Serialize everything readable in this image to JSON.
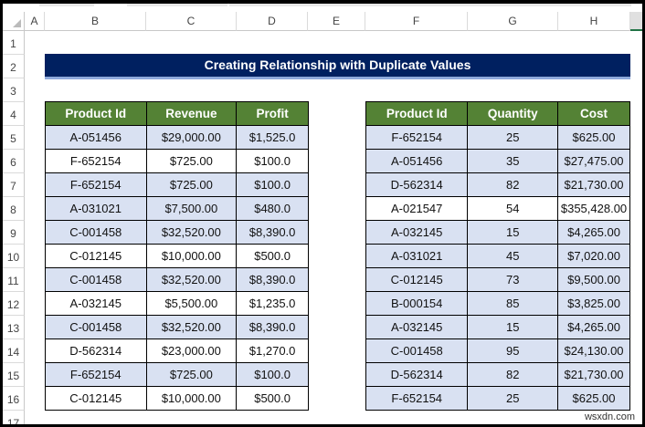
{
  "columns": [
    "A",
    "B",
    "C",
    "D",
    "E",
    "F",
    "G",
    "H"
  ],
  "rows": [
    "1",
    "2",
    "3",
    "4",
    "5",
    "6",
    "7",
    "8",
    "9",
    "10",
    "11",
    "12",
    "13",
    "14",
    "15",
    "16",
    "17"
  ],
  "title": "Creating Relationship with Duplicate Values",
  "colors": {
    "title_bg": "#002060",
    "header_bg": "#548235",
    "highlight": "#d9e1f2"
  },
  "table1": {
    "headers": [
      "Product Id",
      "Revenue",
      "Profit"
    ],
    "rows": [
      {
        "cells": [
          "A-051456",
          "$29,000.00",
          "$1,525.0"
        ],
        "highlighted": true
      },
      {
        "cells": [
          "F-652154",
          "$725.00",
          "$100.0"
        ],
        "highlighted": false
      },
      {
        "cells": [
          "F-652154",
          "$725.00",
          "$100.0"
        ],
        "highlighted": true
      },
      {
        "cells": [
          "A-031021",
          "$7,500.00",
          "$480.0"
        ],
        "highlighted": true
      },
      {
        "cells": [
          "C-001458",
          "$32,520.00",
          "$8,390.0"
        ],
        "highlighted": true
      },
      {
        "cells": [
          "C-012145",
          "$10,000.00",
          "$500.0"
        ],
        "highlighted": false
      },
      {
        "cells": [
          "C-001458",
          "$32,520.00",
          "$8,390.0"
        ],
        "highlighted": true
      },
      {
        "cells": [
          "A-032145",
          "$5,500.00",
          "$1,235.0"
        ],
        "highlighted": false
      },
      {
        "cells": [
          "C-001458",
          "$32,520.00",
          "$8,390.0"
        ],
        "highlighted": true
      },
      {
        "cells": [
          "D-562314",
          "$23,000.00",
          "$1,270.0"
        ],
        "highlighted": false
      },
      {
        "cells": [
          "F-652154",
          "$725.00",
          "$100.0"
        ],
        "highlighted": true
      },
      {
        "cells": [
          "C-012145",
          "$10,000.00",
          "$500.0"
        ],
        "highlighted": false
      }
    ]
  },
  "table2": {
    "headers": [
      "Product Id",
      "Quantity",
      "Cost"
    ],
    "rows": [
      {
        "cells": [
          "F-652154",
          "25",
          "$625.00"
        ],
        "highlighted": true
      },
      {
        "cells": [
          "A-051456",
          "35",
          "$27,475.00"
        ],
        "highlighted": true
      },
      {
        "cells": [
          "D-562314",
          "82",
          "$21,730.00"
        ],
        "highlighted": true
      },
      {
        "cells": [
          "A-021547",
          "54",
          "$355,428.00"
        ],
        "highlighted": false
      },
      {
        "cells": [
          "A-032145",
          "15",
          "$4,265.00"
        ],
        "highlighted": true
      },
      {
        "cells": [
          "A-031021",
          "45",
          "$7,020.00"
        ],
        "highlighted": true
      },
      {
        "cells": [
          "C-012145",
          "73",
          "$9,500.00"
        ],
        "highlighted": true
      },
      {
        "cells": [
          "B-000154",
          "85",
          "$3,825.00"
        ],
        "highlighted": true
      },
      {
        "cells": [
          "A-032145",
          "15",
          "$4,265.00"
        ],
        "highlighted": true
      },
      {
        "cells": [
          "C-001458",
          "95",
          "$24,130.00"
        ],
        "highlighted": true
      },
      {
        "cells": [
          "D-562314",
          "82",
          "$21,730.00"
        ],
        "highlighted": true
      },
      {
        "cells": [
          "F-652154",
          "25",
          "$625.00"
        ],
        "highlighted": true
      }
    ]
  },
  "watermark": "wsxdn.com"
}
